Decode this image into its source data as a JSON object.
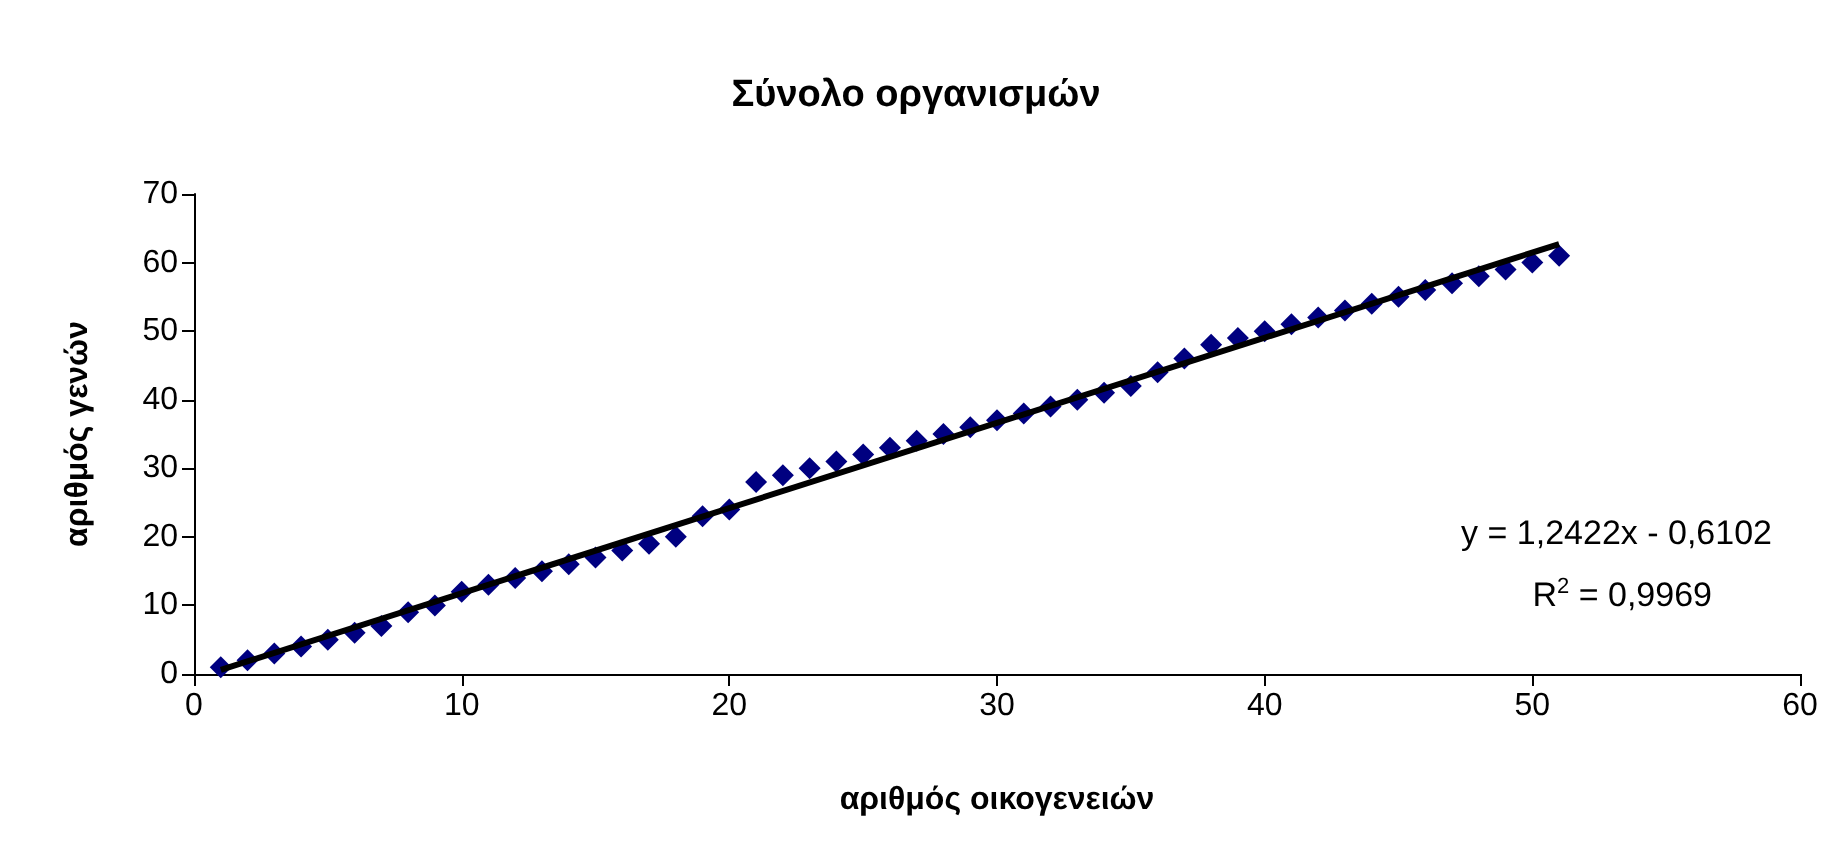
{
  "chart_data": {
    "type": "scatter",
    "title": "Σύνολο οργανισμών",
    "xlabel": "αριθμός οικογενειών",
    "ylabel": "αριθμός γενών",
    "series": [
      {
        "color": "#000080",
        "marker": "diamond",
        "x": [
          1,
          2,
          3,
          4,
          5,
          6,
          7,
          8,
          9,
          10,
          11,
          12,
          13,
          14,
          15,
          16,
          17,
          18,
          19,
          20,
          21,
          22,
          23,
          24,
          25,
          26,
          27,
          28,
          29,
          30,
          31,
          32,
          33,
          34,
          35,
          36,
          37,
          38,
          39,
          40,
          41,
          42,
          43,
          44,
          45,
          46,
          47,
          48,
          49,
          50,
          51
        ],
        "values": [
          1,
          2,
          3,
          4,
          5,
          6,
          7,
          9,
          10,
          12,
          13,
          14,
          15,
          16,
          17,
          18,
          19,
          20,
          23,
          24,
          28,
          29,
          30,
          31,
          32,
          33,
          34,
          35,
          36,
          37,
          38,
          39,
          40,
          41,
          42,
          44,
          46,
          48,
          49,
          50,
          51,
          52,
          53,
          54,
          55,
          56,
          57,
          58,
          59,
          60,
          61
        ]
      },
      {
        "type": "line",
        "marker": "none",
        "color": "#000000",
        "x": [
          1,
          51
        ],
        "values": [
          0.6,
          62.7
        ]
      }
    ],
    "annotations": [
      "y = 1,2422x - 0,6102",
      "R$^{2}$ = 0,9969"
    ],
    "xlim": [
      0,
      60
    ],
    "xticks": [
      0,
      10,
      20,
      30,
      40,
      50,
      60
    ],
    "ylim": [
      0,
      70
    ],
    "yticks": [
      0,
      10,
      20,
      30,
      40,
      50,
      60,
      70
    ],
    "line_style": "solid",
    "grid": false
  }
}
